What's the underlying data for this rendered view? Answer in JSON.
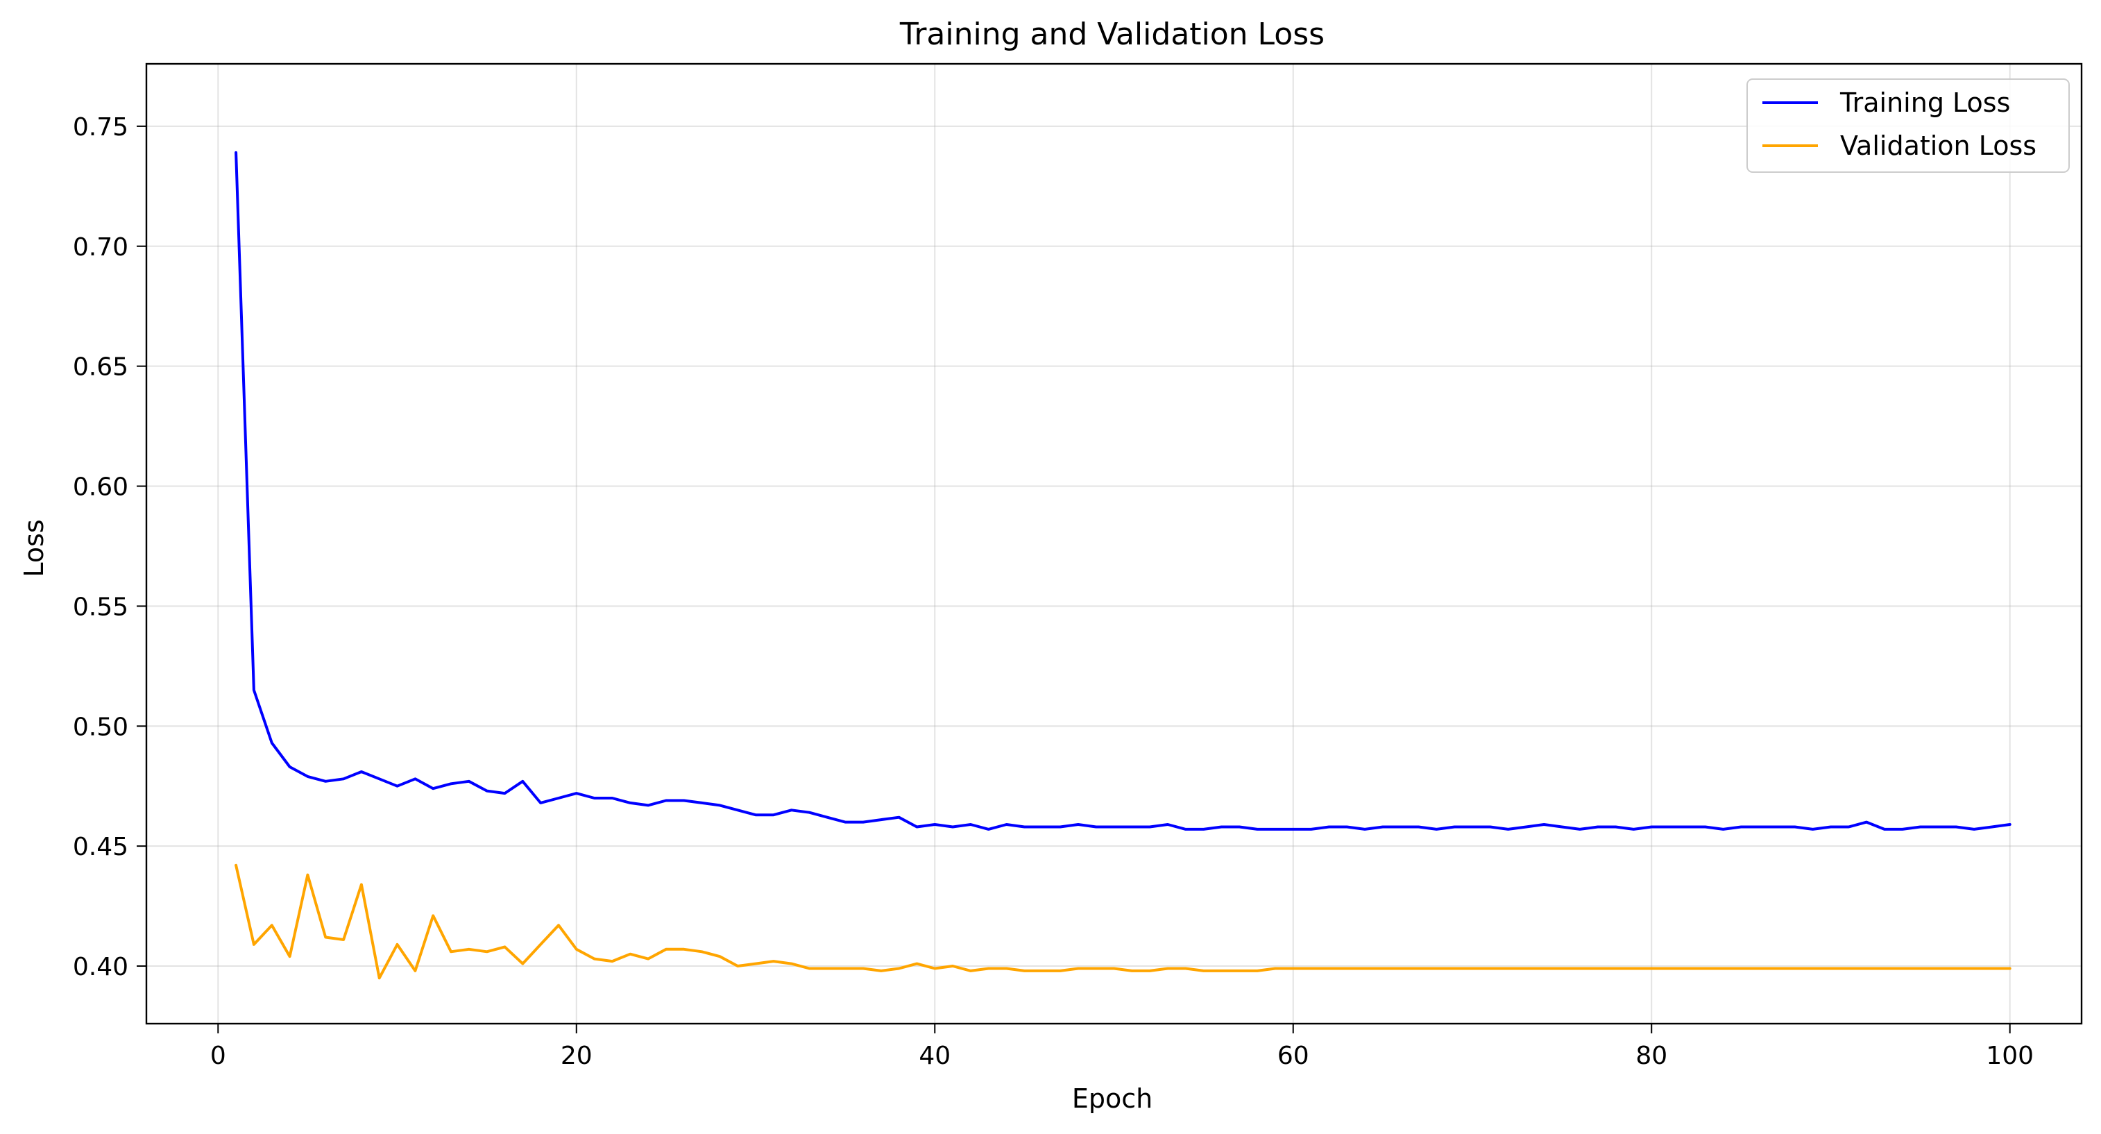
{
  "chart_data": {
    "type": "line",
    "title": "Training and Validation Loss",
    "xlabel": "Epoch",
    "ylabel": "Loss",
    "xlim": [
      -4,
      104
    ],
    "ylim": [
      0.376,
      0.776
    ],
    "xticks": [
      0,
      20,
      40,
      60,
      80,
      100
    ],
    "yticks": [
      0.4,
      0.45,
      0.5,
      0.55,
      0.6,
      0.65,
      0.7,
      0.75
    ],
    "grid": true,
    "legend_position": "top-right",
    "x": [
      1,
      2,
      3,
      4,
      5,
      6,
      7,
      8,
      9,
      10,
      11,
      12,
      13,
      14,
      15,
      16,
      17,
      18,
      19,
      20,
      21,
      22,
      23,
      24,
      25,
      26,
      27,
      28,
      29,
      30,
      31,
      32,
      33,
      34,
      35,
      36,
      37,
      38,
      39,
      40,
      41,
      42,
      43,
      44,
      45,
      46,
      47,
      48,
      49,
      50,
      51,
      52,
      53,
      54,
      55,
      56,
      57,
      58,
      59,
      60,
      61,
      62,
      63,
      64,
      65,
      66,
      67,
      68,
      69,
      70,
      71,
      72,
      73,
      74,
      75,
      76,
      77,
      78,
      79,
      80,
      81,
      82,
      83,
      84,
      85,
      86,
      87,
      88,
      89,
      90,
      91,
      92,
      93,
      94,
      95,
      96,
      97,
      98,
      99,
      100
    ],
    "series": [
      {
        "name": "Training Loss",
        "color": "#0000ff",
        "values": [
          0.739,
          0.515,
          0.493,
          0.483,
          0.479,
          0.477,
          0.478,
          0.481,
          0.478,
          0.475,
          0.478,
          0.474,
          0.476,
          0.477,
          0.473,
          0.472,
          0.477,
          0.468,
          0.47,
          0.472,
          0.47,
          0.47,
          0.468,
          0.467,
          0.469,
          0.469,
          0.468,
          0.467,
          0.465,
          0.463,
          0.463,
          0.465,
          0.464,
          0.462,
          0.46,
          0.46,
          0.461,
          0.462,
          0.458,
          0.459,
          0.458,
          0.459,
          0.457,
          0.459,
          0.458,
          0.458,
          0.458,
          0.459,
          0.458,
          0.458,
          0.458,
          0.458,
          0.459,
          0.457,
          0.457,
          0.458,
          0.458,
          0.457,
          0.457,
          0.457,
          0.457,
          0.458,
          0.458,
          0.457,
          0.458,
          0.458,
          0.458,
          0.457,
          0.458,
          0.458,
          0.458,
          0.457,
          0.458,
          0.459,
          0.458,
          0.457,
          0.458,
          0.458,
          0.457,
          0.458,
          0.458,
          0.458,
          0.458,
          0.457,
          0.458,
          0.458,
          0.458,
          0.458,
          0.457,
          0.458,
          0.458,
          0.46,
          0.457,
          0.457,
          0.458,
          0.458,
          0.458,
          0.457,
          0.458,
          0.459
        ]
      },
      {
        "name": "Validation Loss",
        "color": "#ffa500",
        "values": [
          0.442,
          0.409,
          0.417,
          0.404,
          0.438,
          0.412,
          0.411,
          0.434,
          0.395,
          0.409,
          0.398,
          0.421,
          0.406,
          0.407,
          0.406,
          0.408,
          0.401,
          0.409,
          0.417,
          0.407,
          0.403,
          0.402,
          0.405,
          0.403,
          0.407,
          0.407,
          0.406,
          0.404,
          0.4,
          0.401,
          0.402,
          0.401,
          0.399,
          0.399,
          0.399,
          0.399,
          0.398,
          0.399,
          0.401,
          0.399,
          0.4,
          0.398,
          0.399,
          0.399,
          0.398,
          0.398,
          0.398,
          0.399,
          0.399,
          0.399,
          0.398,
          0.398,
          0.399,
          0.399,
          0.398,
          0.398,
          0.398,
          0.398,
          0.399,
          0.399,
          0.399,
          0.399,
          0.399,
          0.399,
          0.399,
          0.399,
          0.399,
          0.399,
          0.399,
          0.399,
          0.399,
          0.399,
          0.399,
          0.399,
          0.399,
          0.399,
          0.399,
          0.399,
          0.399,
          0.399,
          0.399,
          0.399,
          0.399,
          0.399,
          0.399,
          0.399,
          0.399,
          0.399,
          0.399,
          0.399,
          0.399,
          0.399,
          0.399,
          0.399,
          0.399,
          0.399,
          0.399,
          0.399,
          0.399,
          0.399
        ]
      }
    ]
  }
}
